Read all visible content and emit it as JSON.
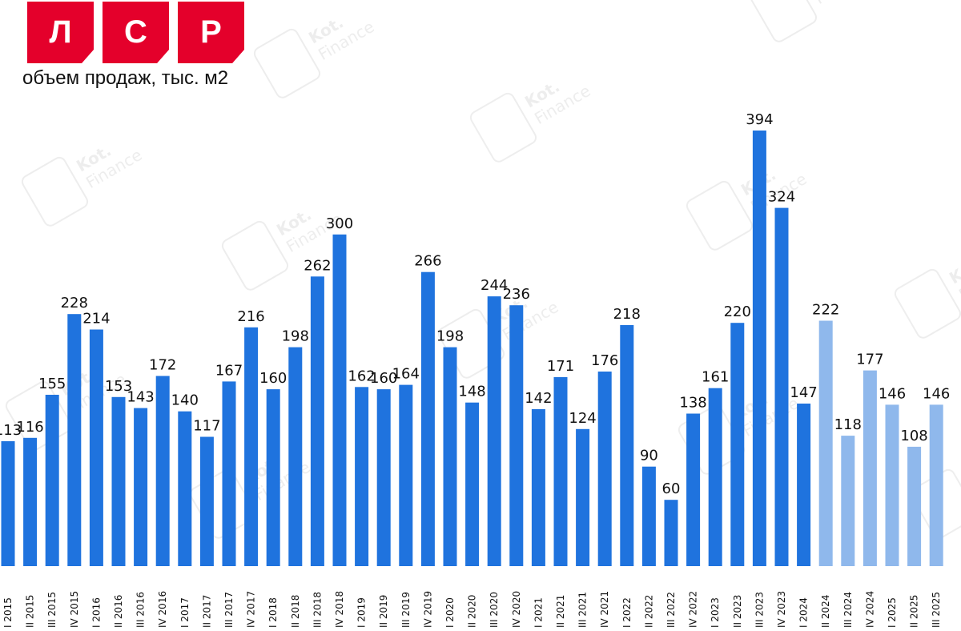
{
  "logo": {
    "letters": [
      "Л",
      "С",
      "Р"
    ],
    "color": "#e4002b"
  },
  "watermark": {
    "line1": "Kot.",
    "line2": "Finance"
  },
  "chart_data": {
    "type": "bar",
    "title": "",
    "subtitle": "объем продаж, тыс. м2",
    "xlabel": "",
    "ylabel": "",
    "ylim": [
      0,
      420
    ],
    "grid": false,
    "legend": "none",
    "colors": {
      "actual": "#1f73de",
      "forecast": "#8fb8ec"
    },
    "categories": [
      "I 2015",
      "II 2015",
      "III 2015",
      "IV 2015",
      "I 2016",
      "II 2016",
      "III 2016",
      "IV 2016",
      "I 2017",
      "II 2017",
      "III 2017",
      "IV 2017",
      "I 2018",
      "II 2018",
      "III 2018",
      "IV 2018",
      "I 2019",
      "II 2019",
      "III 2019",
      "IV 2019",
      "I 2020",
      "II 2020",
      "III 2020",
      "IV 2020",
      "I 2021",
      "II 2021",
      "III 2021",
      "IV 2021",
      "I 2022",
      "II 2022",
      "III 2022",
      "IV 2022",
      "I 2023",
      "II 2023",
      "III 2023",
      "IV 2023",
      "I 2024",
      "II 2024",
      "III 2024",
      "IV 2024",
      "I 2025",
      "II 2025",
      "III 2025"
    ],
    "values": [
      113,
      116,
      155,
      228,
      214,
      153,
      143,
      172,
      140,
      117,
      167,
      216,
      160,
      198,
      262,
      300,
      162,
      160,
      164,
      266,
      198,
      148,
      244,
      236,
      142,
      171,
      124,
      176,
      218,
      90,
      60,
      138,
      161,
      220,
      394,
      324,
      147,
      222,
      118,
      177,
      146,
      108,
      146
    ],
    "forecast_from_index": 37
  }
}
